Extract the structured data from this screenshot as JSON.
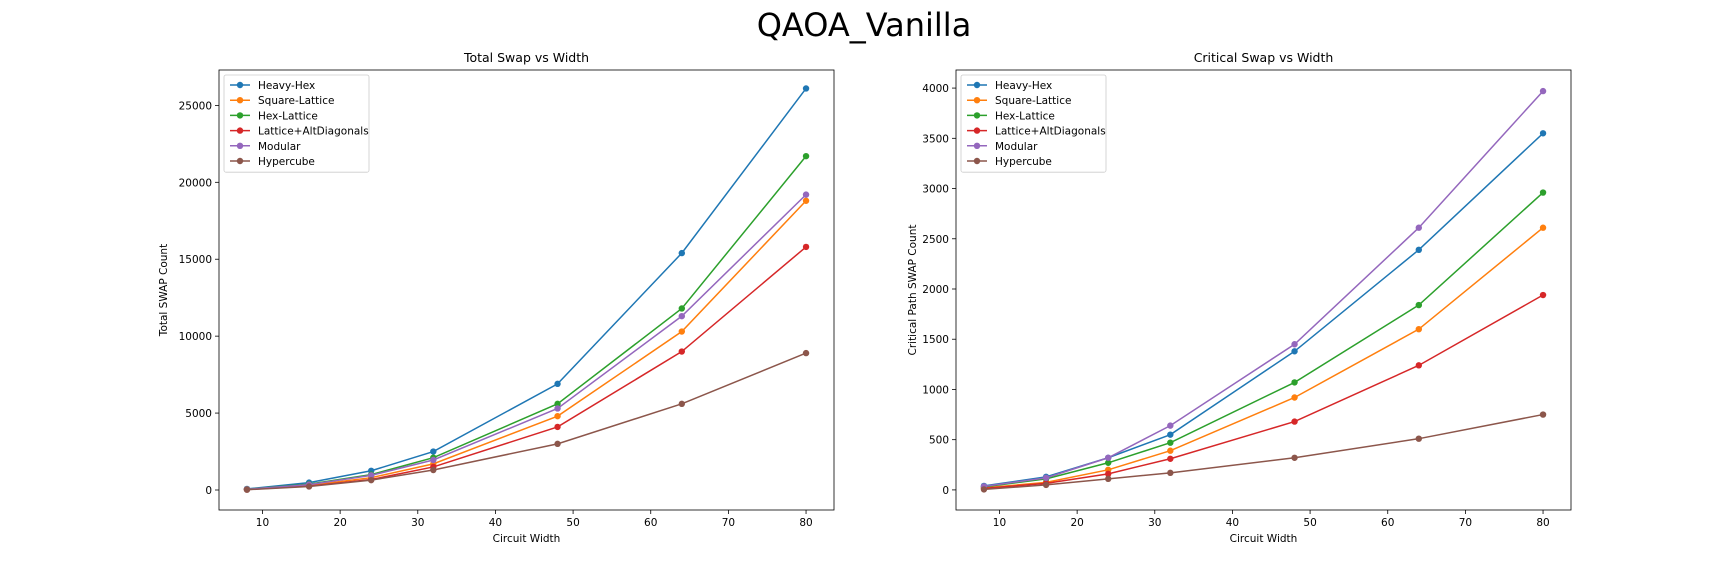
{
  "figure": {
    "suptitle": "QAOA_Vanilla"
  },
  "colors": {
    "Heavy-Hex": "#1f77b4",
    "Square-Lattice": "#ff7f0e",
    "Hex-Lattice": "#2ca02c",
    "Lattice+AltDiagonals": "#d62728",
    "Modular": "#9467bd",
    "Hypercube": "#8c564b"
  },
  "chart_data": [
    {
      "type": "line",
      "title": "Total Swap vs Width",
      "xlabel": "Circuit Width",
      "ylabel": "Total SWAP Count",
      "x": [
        8,
        16,
        24,
        32,
        48,
        64,
        80
      ],
      "xlim": [
        4.4,
        83.6
      ],
      "ylim": [
        -1300,
        27300
      ],
      "xticks": [
        10,
        20,
        30,
        40,
        50,
        60,
        70,
        80
      ],
      "yticks": [
        0,
        5000,
        10000,
        15000,
        20000,
        25000
      ],
      "grid": false,
      "legend": "upper left",
      "series": [
        {
          "name": "Heavy-Hex",
          "values": [
            70,
            480,
            1250,
            2500,
            6900,
            15400,
            26100
          ]
        },
        {
          "name": "Square-Lattice",
          "values": [
            40,
            300,
            800,
            1700,
            4800,
            10300,
            18800
          ]
        },
        {
          "name": "Hex-Lattice",
          "values": [
            50,
            380,
            1000,
            2100,
            5600,
            11800,
            21700
          ]
        },
        {
          "name": "Lattice+AltDiagonals",
          "values": [
            30,
            250,
            680,
            1500,
            4100,
            9000,
            15800
          ]
        },
        {
          "name": "Modular",
          "values": [
            45,
            350,
            950,
            1950,
            5300,
            11300,
            19200
          ]
        },
        {
          "name": "Hypercube",
          "values": [
            20,
            230,
            640,
            1300,
            3000,
            5600,
            8900
          ]
        }
      ]
    },
    {
      "type": "line",
      "title": "Critical Swap vs Width",
      "xlabel": "Circuit Width",
      "ylabel": "Critical Path SWAP Count",
      "x": [
        8,
        16,
        24,
        32,
        48,
        64,
        80
      ],
      "xlim": [
        4.4,
        83.6
      ],
      "ylim": [
        -200,
        4180
      ],
      "xticks": [
        10,
        20,
        30,
        40,
        50,
        60,
        70,
        80
      ],
      "yticks": [
        0,
        500,
        1000,
        1500,
        2000,
        2500,
        3000,
        3500,
        4000
      ],
      "grid": false,
      "legend": "upper left",
      "series": [
        {
          "name": "Heavy-Hex",
          "values": [
            40,
            130,
            320,
            550,
            1380,
            2390,
            3550
          ]
        },
        {
          "name": "Square-Lattice",
          "values": [
            20,
            75,
            200,
            390,
            920,
            1600,
            2610
          ]
        },
        {
          "name": "Hex-Lattice",
          "values": [
            30,
            110,
            270,
            470,
            1070,
            1840,
            2960
          ]
        },
        {
          "name": "Lattice+AltDiagonals",
          "values": [
            15,
            65,
            160,
            310,
            680,
            1240,
            1940
          ]
        },
        {
          "name": "Modular",
          "values": [
            35,
            120,
            320,
            640,
            1450,
            2610,
            3970
          ]
        },
        {
          "name": "Hypercube",
          "values": [
            5,
            50,
            110,
            170,
            320,
            510,
            750
          ]
        }
      ]
    }
  ]
}
